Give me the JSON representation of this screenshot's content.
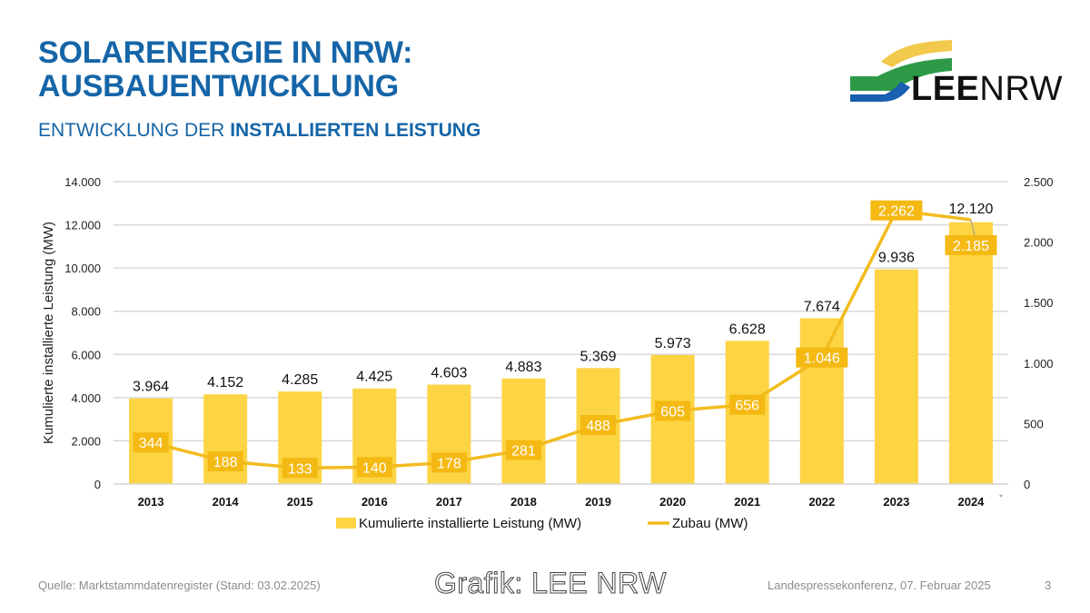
{
  "header": {
    "title_line1": "SOLARENERGIE IN NRW:",
    "title_line2": "AUSBAUENTWICKLUNG",
    "subtitle_regular": "ENTWICKLUNG DER ",
    "subtitle_bold": "INSTALLIERTEN LEISTUNG"
  },
  "logo": {
    "text_bold": "LEE",
    "text_regular": "NRW",
    "colors": {
      "yellow": "#f2c94c",
      "green": "#2e9a48",
      "blue": "#1a5fb0"
    }
  },
  "footer": {
    "source": "Quelle: Marktstammdatenregister (Stand: 03.02.2025)",
    "watermark": "Grafik: LEE NRW",
    "event": "Landespressekonferenz, 07. Februar 2025",
    "page_number": "3"
  },
  "colors": {
    "bar": "#fdd443",
    "line": "#f2bb1e",
    "label_box": "#f4b913",
    "title": "#1565a8",
    "grid": "#d9d9d9"
  },
  "chart_data": {
    "type": "bar",
    "title": "",
    "categories": [
      "2013",
      "2014",
      "2015",
      "2016",
      "2017",
      "2018",
      "2019",
      "2020",
      "2021",
      "2022",
      "2023",
      "2024"
    ],
    "category_footnote": {
      "category": "2024",
      "mark": "*"
    },
    "series": [
      {
        "name": "Kumulierte installierte Leistung (MW)",
        "type": "bar",
        "axis": "left",
        "values": [
          3964,
          4152,
          4285,
          4425,
          4603,
          4883,
          5369,
          5973,
          6628,
          7674,
          9936,
          12120
        ],
        "labels": [
          "3.964",
          "4.152",
          "4.285",
          "4.425",
          "4.603",
          "4.883",
          "5.369",
          "5.973",
          "6.628",
          "7.674",
          "9.936",
          "12.120"
        ]
      },
      {
        "name": "Zubau (MW)",
        "type": "line",
        "axis": "right",
        "values": [
          344,
          188,
          133,
          140,
          178,
          281,
          488,
          605,
          656,
          1046,
          2262,
          2185
        ],
        "labels": [
          "344",
          "188",
          "133",
          "140",
          "178",
          "281",
          "488",
          "605",
          "656",
          "1.046",
          "2.262",
          "2.185"
        ]
      }
    ],
    "ylabel": "Kumulierte installierte Leistung (MW)",
    "ylim": [
      0,
      14000
    ],
    "yticks": [
      0,
      2000,
      4000,
      6000,
      8000,
      10000,
      12000,
      14000
    ],
    "ytick_labels": [
      "0",
      "2.000",
      "4.000",
      "6.000",
      "8.000",
      "10.000",
      "12.000",
      "14.000"
    ],
    "y2lim": [
      0,
      2500
    ],
    "y2ticks": [
      0,
      500,
      1000,
      1500,
      2000,
      2500
    ],
    "y2tick_labels": [
      "0",
      "500",
      "1.000",
      "1.500",
      "2.000",
      "2.500"
    ],
    "grid": true,
    "legend": "bottom-center"
  }
}
